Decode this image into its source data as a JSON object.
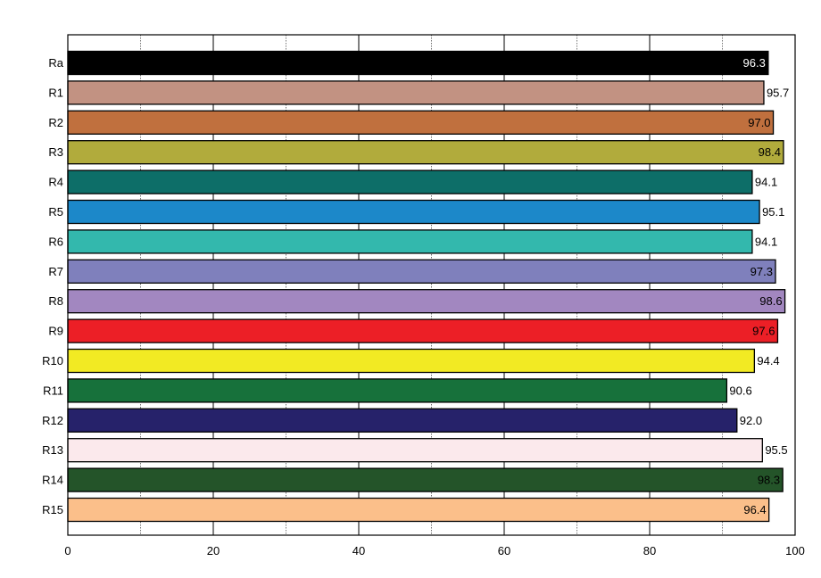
{
  "chart_data": {
    "type": "bar",
    "orientation": "horizontal",
    "categories": [
      "Ra",
      "R1",
      "R2",
      "R3",
      "R4",
      "R5",
      "R6",
      "R7",
      "R8",
      "R9",
      "R10",
      "R11",
      "R12",
      "R13",
      "R14",
      "R15"
    ],
    "values": [
      96.3,
      95.7,
      97.0,
      98.4,
      94.1,
      95.1,
      94.1,
      97.3,
      98.6,
      97.6,
      94.4,
      90.6,
      92.0,
      95.5,
      98.3,
      96.4
    ],
    "value_labels": [
      "96.3",
      "95.7",
      "97.0",
      "98.4",
      "94.1",
      "95.1",
      "94.1",
      "97.3",
      "98.6",
      "97.6",
      "94.4",
      "90.6",
      "92.0",
      "95.5",
      "98.3",
      "96.4"
    ],
    "colors": [
      "#000000",
      "#c29282",
      "#c0703e",
      "#b1ab3c",
      "#0d6e68",
      "#1c88c9",
      "#33b8ad",
      "#7f80bc",
      "#a287c0",
      "#ec1f26",
      "#f2ea23",
      "#17713b",
      "#26226a",
      "#fbe9ec",
      "#245429",
      "#fbbf8a"
    ],
    "label_colors": [
      "#ffffff",
      "#000000",
      "#000000",
      "#000000",
      "#000000",
      "#000000",
      "#000000",
      "#000000",
      "#000000",
      "#000000",
      "#000000",
      "#000000",
      "#000000",
      "#000000",
      "#000000",
      "#000000"
    ],
    "label_inside": [
      true,
      false,
      true,
      true,
      false,
      false,
      false,
      true,
      true,
      true,
      false,
      false,
      false,
      false,
      true,
      true
    ],
    "x_ticks": [
      "0",
      "20",
      "40",
      "60",
      "80",
      "100"
    ],
    "xlim": [
      0,
      100
    ],
    "major_grid": [
      20,
      40,
      60,
      80
    ],
    "minor_grid": [
      10,
      30,
      50,
      70,
      90
    ],
    "title": "",
    "xlabel": "",
    "ylabel": "",
    "grid": true,
    "legend": "none"
  }
}
